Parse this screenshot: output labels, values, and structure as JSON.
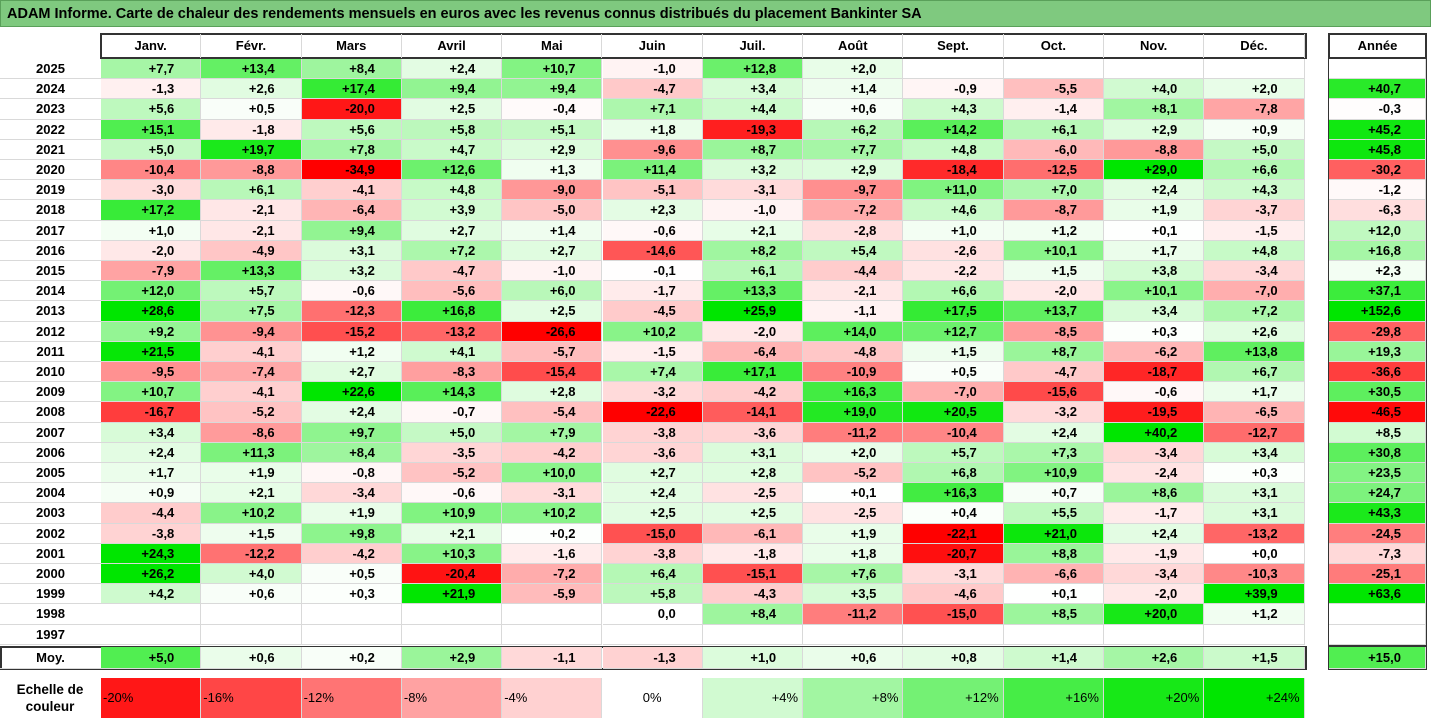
{
  "title": "ADAM Informe. Carte de chaleur des rendements mensuels en euros avec les revenus connus distribués du placement Bankinter SA",
  "chart_data": {
    "type": "heatmap",
    "months": [
      "Janv.",
      "Févr.",
      "Mars",
      "Avril",
      "Mai",
      "Juin",
      "Juil.",
      "Août",
      "Sept.",
      "Oct.",
      "Nov.",
      "Déc."
    ],
    "year_column_label": "Année",
    "rows": [
      {
        "year": "2025",
        "values": [
          "+7,7",
          "+13,4",
          "+8,4",
          "+2,4",
          "+10,7",
          "-1,0",
          "+12,8",
          "+2,0",
          "",
          "",
          "",
          ""
        ],
        "annual": ""
      },
      {
        "year": "2024",
        "values": [
          "-1,3",
          "+2,6",
          "+17,4",
          "+9,4",
          "+9,4",
          "-4,7",
          "+3,4",
          "+1,4",
          "-0,9",
          "-5,5",
          "+4,0",
          "+2,0"
        ],
        "annual": "+40,7"
      },
      {
        "year": "2023",
        "values": [
          "+5,6",
          "+0,5",
          "-20,0",
          "+2,5",
          "-0,4",
          "+7,1",
          "+4,4",
          "+0,6",
          "+4,3",
          "-1,4",
          "+8,1",
          "-7,8"
        ],
        "annual": "-0,3"
      },
      {
        "year": "2022",
        "values": [
          "+15,1",
          "-1,8",
          "+5,6",
          "+5,8",
          "+5,1",
          "+1,8",
          "-19,3",
          "+6,2",
          "+14,2",
          "+6,1",
          "+2,9",
          "+0,9"
        ],
        "annual": "+45,2"
      },
      {
        "year": "2021",
        "values": [
          "+5,0",
          "+19,7",
          "+7,8",
          "+4,7",
          "+2,9",
          "-9,6",
          "+8,7",
          "+7,7",
          "+4,8",
          "-6,0",
          "-8,8",
          "+5,0"
        ],
        "annual": "+45,8"
      },
      {
        "year": "2020",
        "values": [
          "-10,4",
          "-8,8",
          "-34,9",
          "+12,6",
          "+1,3",
          "+11,4",
          "+3,2",
          "+2,9",
          "-18,4",
          "-12,5",
          "+29,0",
          "+6,6"
        ],
        "annual": "-30,2"
      },
      {
        "year": "2019",
        "values": [
          "-3,0",
          "+6,1",
          "-4,1",
          "+4,8",
          "-9,0",
          "-5,1",
          "-3,1",
          "-9,7",
          "+11,0",
          "+7,0",
          "+2,4",
          "+4,3"
        ],
        "annual": "-1,2"
      },
      {
        "year": "2018",
        "values": [
          "+17,2",
          "-2,1",
          "-6,4",
          "+3,9",
          "-5,0",
          "+2,3",
          "-1,0",
          "-7,2",
          "+4,6",
          "-8,7",
          "+1,9",
          "-3,7"
        ],
        "annual": "-6,3"
      },
      {
        "year": "2017",
        "values": [
          "+1,0",
          "-2,1",
          "+9,4",
          "+2,7",
          "+1,4",
          "-0,6",
          "+2,1",
          "-2,8",
          "+1,0",
          "+1,2",
          "+0,1",
          "-1,5"
        ],
        "annual": "+12,0"
      },
      {
        "year": "2016",
        "values": [
          "-2,0",
          "-4,9",
          "+3,1",
          "+7,2",
          "+2,7",
          "-14,6",
          "+8,2",
          "+5,4",
          "-2,6",
          "+10,1",
          "+1,7",
          "+4,8"
        ],
        "annual": "+16,8"
      },
      {
        "year": "2015",
        "values": [
          "-7,9",
          "+13,3",
          "+3,2",
          "-4,7",
          "-1,0",
          "-0,1",
          "+6,1",
          "-4,4",
          "-2,2",
          "+1,5",
          "+3,8",
          "-3,4"
        ],
        "annual": "+2,3"
      },
      {
        "year": "2014",
        "values": [
          "+12,0",
          "+5,7",
          "-0,6",
          "-5,6",
          "+6,0",
          "-1,7",
          "+13,3",
          "-2,1",
          "+6,6",
          "-2,0",
          "+10,1",
          "-7,0"
        ],
        "annual": "+37,1"
      },
      {
        "year": "2013",
        "values": [
          "+28,6",
          "+7,5",
          "-12,3",
          "+16,8",
          "+2,5",
          "-4,5",
          "+25,9",
          "-1,1",
          "+17,5",
          "+13,7",
          "+3,4",
          "+7,2"
        ],
        "annual": "+152,6"
      },
      {
        "year": "2012",
        "values": [
          "+9,2",
          "-9,4",
          "-15,2",
          "-13,2",
          "-26,6",
          "+10,2",
          "-2,0",
          "+14,0",
          "+12,7",
          "-8,5",
          "+0,3",
          "+2,6"
        ],
        "annual": "-29,8"
      },
      {
        "year": "2011",
        "values": [
          "+21,5",
          "-4,1",
          "+1,2",
          "+4,1",
          "-5,7",
          "-1,5",
          "-6,4",
          "-4,8",
          "+1,5",
          "+8,7",
          "-6,2",
          "+13,8"
        ],
        "annual": "+19,3"
      },
      {
        "year": "2010",
        "values": [
          "-9,5",
          "-7,4",
          "+2,7",
          "-8,3",
          "-15,4",
          "+7,4",
          "+17,1",
          "-10,9",
          "+0,5",
          "-4,7",
          "-18,7",
          "+6,7"
        ],
        "annual": "-36,6"
      },
      {
        "year": "2009",
        "values": [
          "+10,7",
          "-4,1",
          "+22,6",
          "+14,3",
          "+2,8",
          "-3,2",
          "-4,2",
          "+16,3",
          "-7,0",
          "-15,6",
          "-0,6",
          "+1,7"
        ],
        "annual": "+30,5"
      },
      {
        "year": "2008",
        "values": [
          "-16,7",
          "-5,2",
          "+2,4",
          "-0,7",
          "-5,4",
          "-22,6",
          "-14,1",
          "+19,0",
          "+20,5",
          "-3,2",
          "-19,5",
          "-6,5"
        ],
        "annual": "-46,5"
      },
      {
        "year": "2007",
        "values": [
          "+3,4",
          "-8,6",
          "+9,7",
          "+5,0",
          "+7,9",
          "-3,8",
          "-3,6",
          "-11,2",
          "-10,4",
          "+2,4",
          "+40,2",
          "-12,7"
        ],
        "annual": "+8,5"
      },
      {
        "year": "2006",
        "values": [
          "+2,4",
          "+11,3",
          "+8,4",
          "-3,5",
          "-4,2",
          "-3,6",
          "+3,1",
          "+2,0",
          "+5,7",
          "+7,3",
          "-3,4",
          "+3,4"
        ],
        "annual": "+30,8"
      },
      {
        "year": "2005",
        "values": [
          "+1,7",
          "+1,9",
          "-0,8",
          "-5,2",
          "+10,0",
          "+2,7",
          "+2,8",
          "-5,2",
          "+6,8",
          "+10,9",
          "-2,4",
          "+0,3"
        ],
        "annual": "+23,5"
      },
      {
        "year": "2004",
        "values": [
          "+0,9",
          "+2,1",
          "-3,4",
          "-0,6",
          "-3,1",
          "+2,4",
          "-2,5",
          "+0,1",
          "+16,3",
          "+0,7",
          "+8,6",
          "+3,1"
        ],
        "annual": "+24,7"
      },
      {
        "year": "2003",
        "values": [
          "-4,4",
          "+10,2",
          "+1,9",
          "+10,9",
          "+10,2",
          "+2,5",
          "+2,5",
          "-2,5",
          "+0,4",
          "+5,5",
          "-1,7",
          "+3,1"
        ],
        "annual": "+43,3"
      },
      {
        "year": "2002",
        "values": [
          "-3,8",
          "+1,5",
          "+9,8",
          "+2,1",
          "+0,2",
          "-15,0",
          "-6,1",
          "+1,9",
          "-22,1",
          "+21,0",
          "+2,4",
          "-13,2"
        ],
        "annual": "-24,5"
      },
      {
        "year": "2001",
        "values": [
          "+24,3",
          "-12,2",
          "-4,2",
          "+10,3",
          "-1,6",
          "-3,8",
          "-1,8",
          "+1,8",
          "-20,7",
          "+8,8",
          "-1,9",
          "+0,0"
        ],
        "annual": "-7,3"
      },
      {
        "year": "2000",
        "values": [
          "+26,2",
          "+4,0",
          "+0,5",
          "-20,4",
          "-7,2",
          "+6,4",
          "-15,1",
          "+7,6",
          "-3,1",
          "-6,6",
          "-3,4",
          "-10,3"
        ],
        "annual": "-25,1"
      },
      {
        "year": "1999",
        "values": [
          "+4,2",
          "+0,6",
          "+0,3",
          "+21,9",
          "-5,9",
          "+5,8",
          "-4,3",
          "+3,5",
          "-4,6",
          "+0,1",
          "-2,0",
          "+39,9"
        ],
        "annual": "+63,6"
      },
      {
        "year": "1998",
        "values": [
          "",
          "",
          "",
          "",
          "",
          "0,0",
          "+8,4",
          "-11,2",
          "-15,0",
          "+8,5",
          "+20,0",
          "+1,2"
        ],
        "annual": ""
      },
      {
        "year": "1997",
        "values": [
          "",
          "",
          "",
          "",
          "",
          "",
          "",
          "",
          "",
          "",
          "",
          ""
        ],
        "annual": ""
      }
    ],
    "average_row": {
      "label": "Moy.",
      "values": [
        "+5,0",
        "+0,6",
        "+0,2",
        "+2,9",
        "-1,1",
        "-1,3",
        "+1,0",
        "+0,6",
        "+0,8",
        "+1,4",
        "+2,6",
        "+1,5"
      ],
      "annual": "+15,0"
    },
    "scale": {
      "label": "Echelle de couleur",
      "steps": [
        {
          "label": "-20%",
          "value": -20
        },
        {
          "label": "-16%",
          "value": -16
        },
        {
          "label": "-12%",
          "value": -12
        },
        {
          "label": "-8%",
          "value": -8
        },
        {
          "label": "-4%",
          "value": -4
        },
        {
          "label": "0%",
          "value": 0
        },
        {
          "label": "+4%",
          "value": 4
        },
        {
          "label": "+8%",
          "value": 8
        },
        {
          "label": "+12%",
          "value": 12
        },
        {
          "label": "+16%",
          "value": 16
        },
        {
          "label": "+20%",
          "value": 20
        },
        {
          "label": "+24%",
          "value": 24
        }
      ]
    },
    "colors": {
      "negative": "#ff0000",
      "neutral": "#ffffff",
      "positive": "#00ee00",
      "title_bar": "#7fc97f"
    }
  }
}
